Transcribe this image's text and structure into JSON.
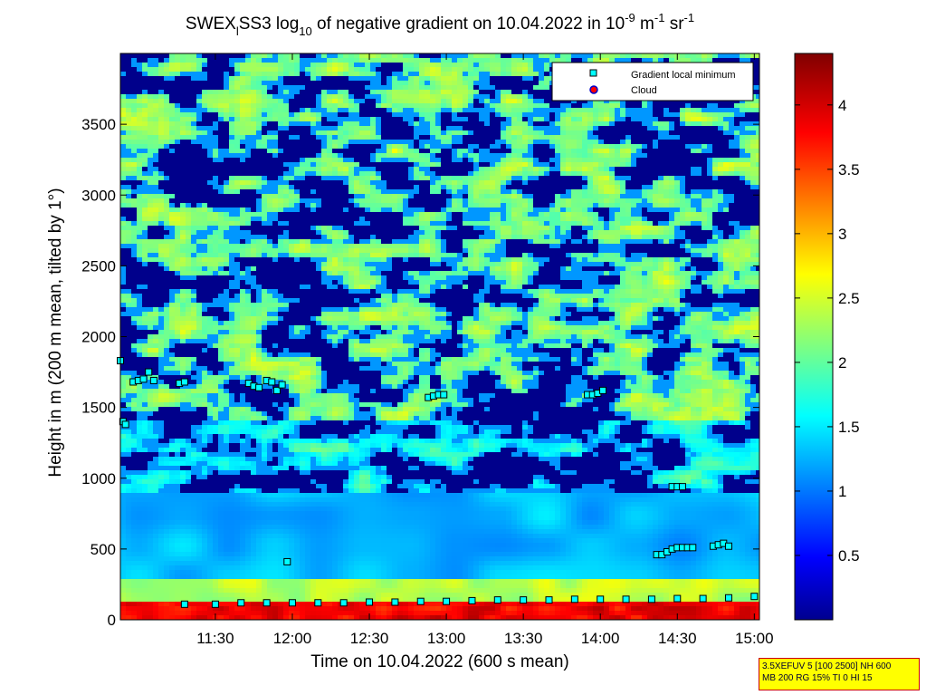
{
  "chart_data": {
    "type": "heatmap",
    "title": {
      "prefix": "SWEX",
      "prefix_sub": "l",
      "mid": "SS3 log",
      "mid_sub": "10",
      "rest": " of negative gradient on 10.04.2022 in 10",
      "unit_exp1": "-9",
      "unit_mid": " m",
      "unit_exp2": "-1",
      "unit_end": " sr",
      "unit_exp3": "-1"
    },
    "xlabel": "Time on 10.04.2022 (600 s mean)",
    "ylabel": "Height in m (200 m mean, tilted by 1°)",
    "x_ticks": [
      "11:30",
      "12:00",
      "12:30",
      "13:00",
      "13:30",
      "14:00",
      "14:30",
      "15:00"
    ],
    "x_tick_minutes": [
      690,
      720,
      750,
      780,
      810,
      840,
      870,
      900
    ],
    "xlim_minutes": [
      653,
      902
    ],
    "y_ticks": [
      0,
      500,
      1000,
      1500,
      2000,
      2500,
      3000,
      3500
    ],
    "ylim": [
      0,
      4000
    ],
    "colorbar": {
      "ticks": [
        "0.5",
        "1",
        "1.5",
        "2",
        "2.5",
        "3",
        "3.5",
        "4"
      ],
      "tick_values": [
        0.5,
        1,
        1.5,
        2,
        2.5,
        3,
        3.5,
        4
      ],
      "range": [
        0,
        4.4
      ],
      "colormap": "jet"
    },
    "legend": {
      "placement": "top-right",
      "items": [
        {
          "label": "Gradient local minimum",
          "marker": "square",
          "color": "#00ffff"
        },
        {
          "label": "Cloud",
          "marker": "circle",
          "color": "#ff0000"
        }
      ]
    },
    "series": [
      {
        "name": "Gradient local minimum",
        "points": [
          [
            653,
            1830
          ],
          [
            654,
            1400
          ],
          [
            655,
            1380
          ],
          [
            658,
            1680
          ],
          [
            660,
            1690
          ],
          [
            662,
            1700
          ],
          [
            664,
            1750
          ],
          [
            666,
            1690
          ],
          [
            676,
            1670
          ],
          [
            678,
            1680
          ],
          [
            703,
            1670
          ],
          [
            705,
            1650
          ],
          [
            707,
            1640
          ],
          [
            710,
            1690
          ],
          [
            712,
            1680
          ],
          [
            714,
            1620
          ],
          [
            716,
            1660
          ],
          [
            718,
            410
          ],
          [
            773,
            1570
          ],
          [
            775,
            1580
          ],
          [
            777,
            1590
          ],
          [
            779,
            1590
          ],
          [
            835,
            1590
          ],
          [
            837,
            1590
          ],
          [
            839,
            1600
          ],
          [
            841,
            1620
          ],
          [
            868,
            940
          ],
          [
            870,
            940
          ],
          [
            872,
            940
          ],
          [
            862,
            460
          ],
          [
            864,
            460
          ],
          [
            866,
            480
          ],
          [
            868,
            500
          ],
          [
            870,
            510
          ],
          [
            872,
            510
          ],
          [
            874,
            510
          ],
          [
            876,
            510
          ],
          [
            884,
            520
          ],
          [
            886,
            530
          ],
          [
            888,
            540
          ],
          [
            890,
            520
          ],
          [
            678,
            110
          ],
          [
            690,
            110
          ],
          [
            700,
            120
          ],
          [
            710,
            120
          ],
          [
            720,
            120
          ],
          [
            730,
            120
          ],
          [
            740,
            120
          ],
          [
            750,
            125
          ],
          [
            760,
            125
          ],
          [
            770,
            130
          ],
          [
            780,
            130
          ],
          [
            790,
            135
          ],
          [
            800,
            140
          ],
          [
            810,
            140
          ],
          [
            820,
            140
          ],
          [
            830,
            145
          ],
          [
            840,
            145
          ],
          [
            850,
            145
          ],
          [
            860,
            145
          ],
          [
            870,
            150
          ],
          [
            880,
            150
          ],
          [
            890,
            155
          ],
          [
            900,
            165
          ]
        ]
      }
    ],
    "annotation": {
      "line1": "3.5XEFUV 5 [100 2500] NH 600",
      "line2": "MB 200 RG 15% TI 0 HI 15"
    }
  }
}
